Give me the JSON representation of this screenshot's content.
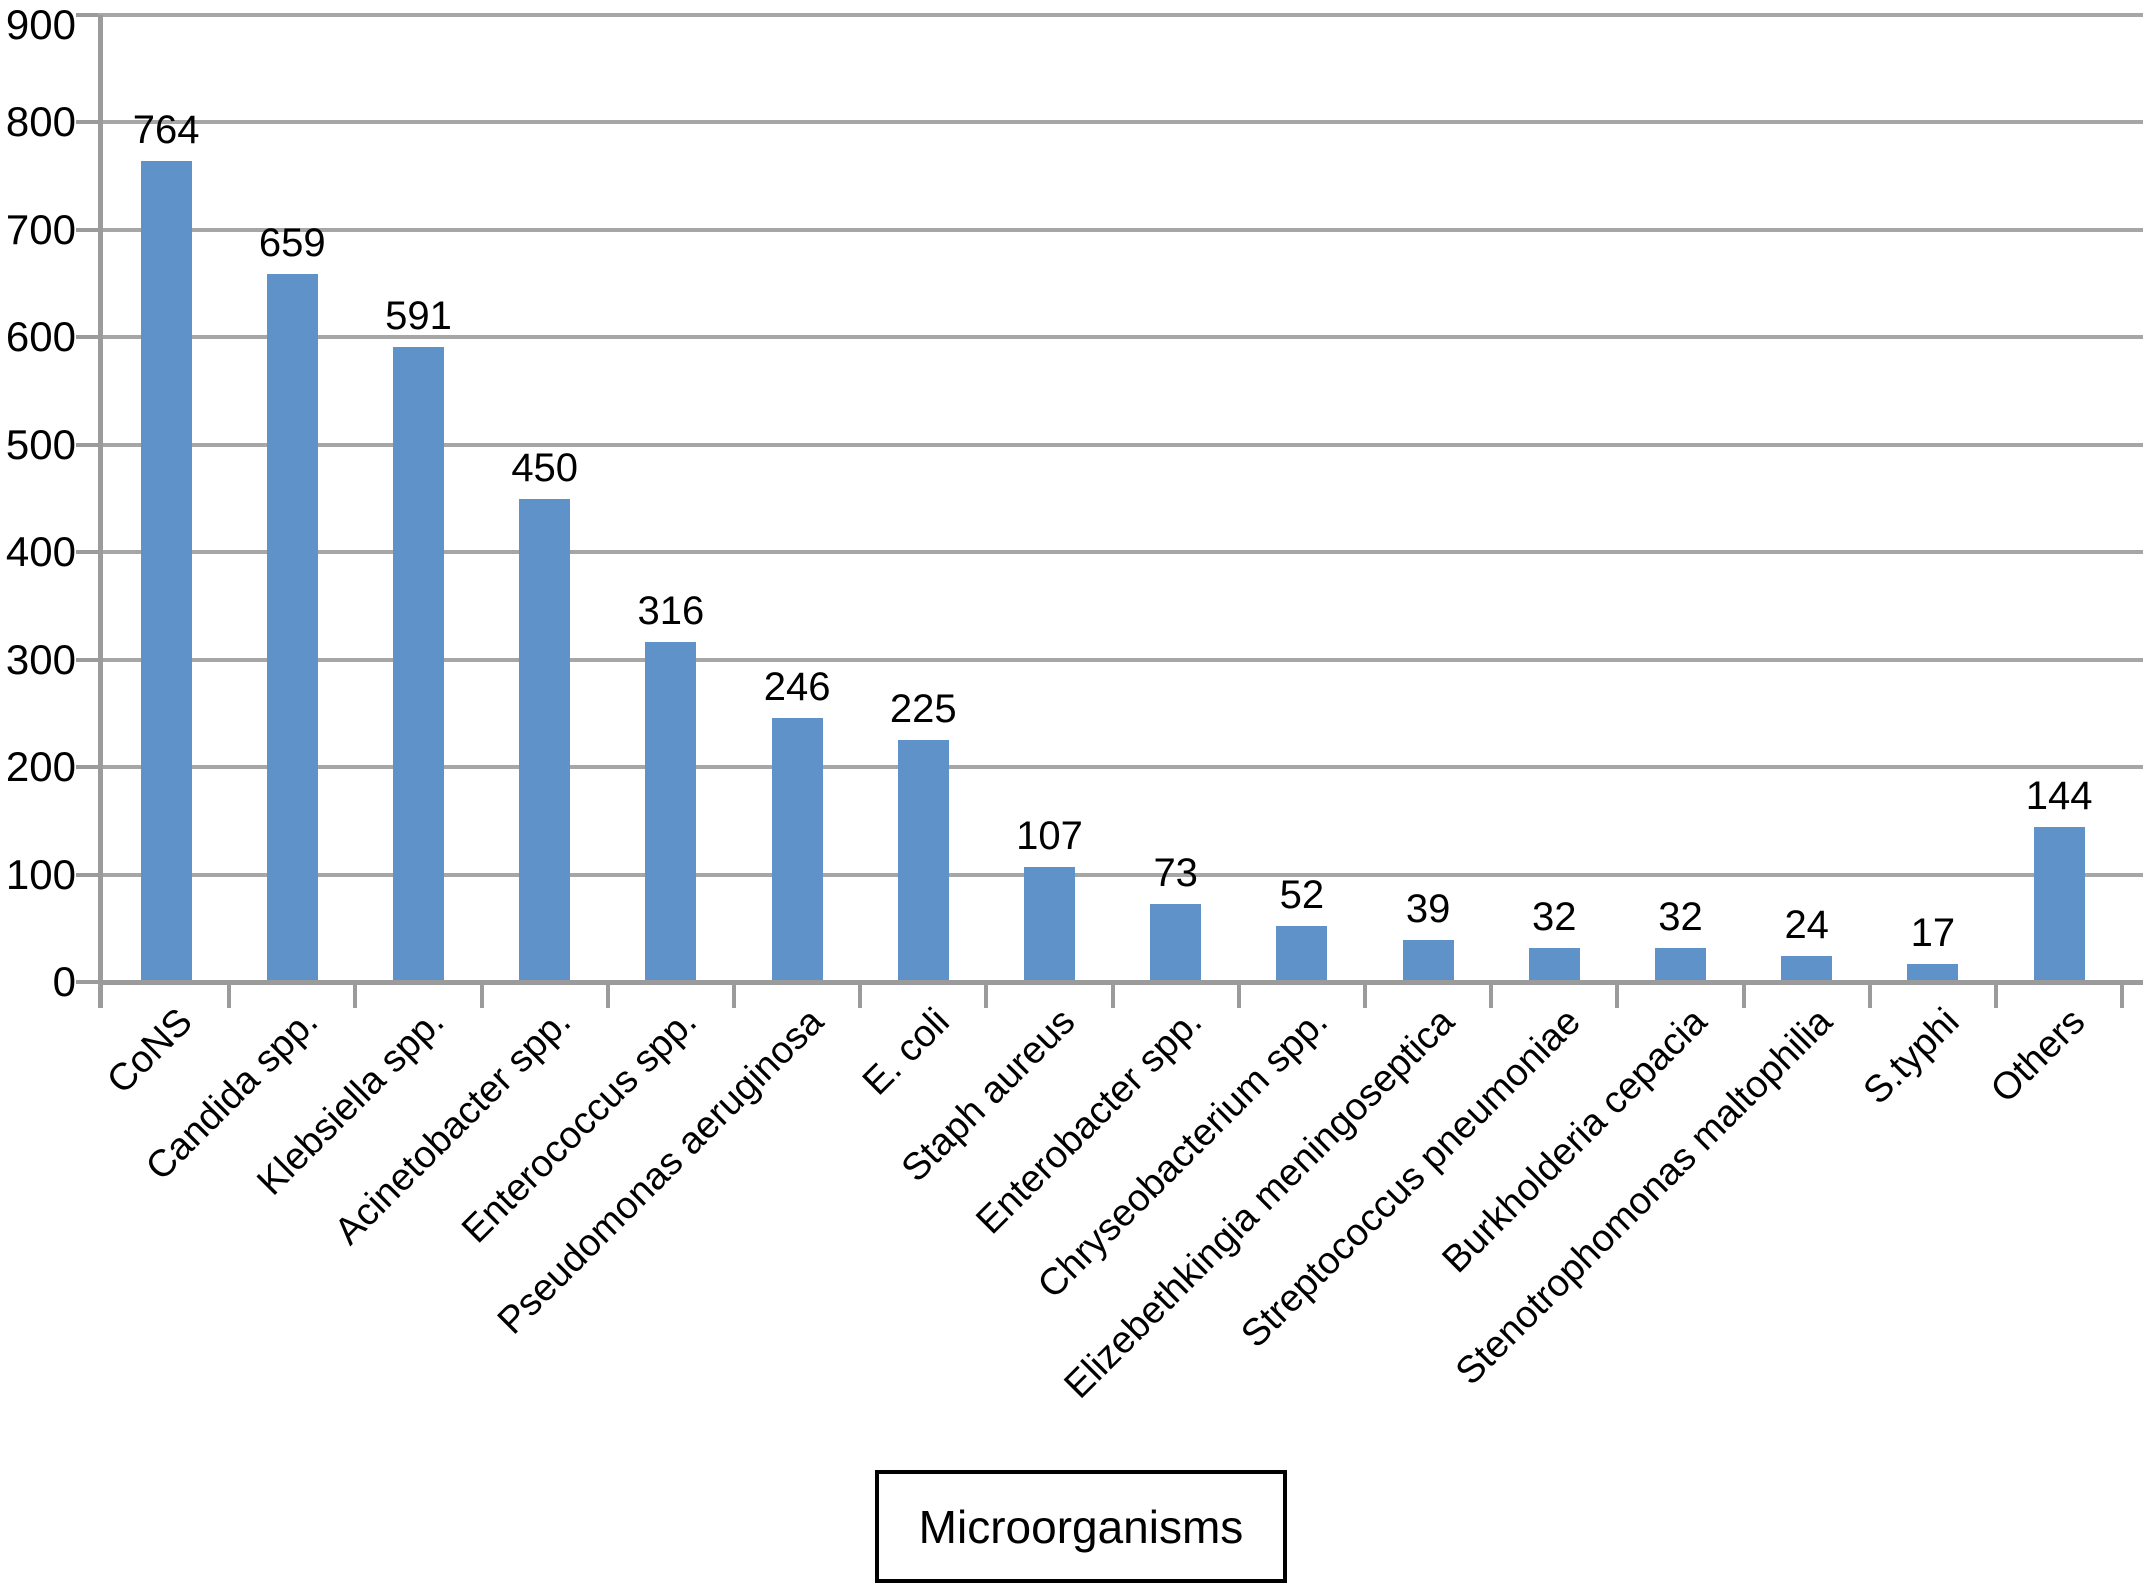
{
  "chart_data": {
    "type": "bar",
    "title": "",
    "categories": [
      "CoNS",
      "Candida spp.",
      "Klebsiella spp.",
      "Acinetobacter spp.",
      "Enterococcus spp.",
      "Pseudomonas aeruginosa",
      "E. coli",
      "Staph aureus",
      "Enterobacter spp.",
      "Chryseobacterium spp.",
      "Elizebethkingia meningoseptica",
      "Streptococcus pneumoniae",
      "Burkholderia cepacia",
      "Stenotrophomonas maltophilia",
      "S.typhi",
      "Others"
    ],
    "values": [
      764,
      659,
      591,
      450,
      316,
      246,
      225,
      107,
      73,
      52,
      39,
      32,
      32,
      24,
      17,
      144
    ],
    "data_labels": [
      "764",
      "659",
      "591",
      "450",
      "316",
      "246",
      "225",
      "107",
      "73",
      "52",
      "39",
      "32",
      "32",
      "24",
      "17",
      "144"
    ],
    "xlabel": "Microorganisms",
    "ylabel": "",
    "ylim": [
      0,
      900
    ],
    "yticks": [
      0,
      100,
      200,
      300,
      400,
      500,
      600,
      700,
      800,
      900
    ],
    "grid": "horizontal-gridlines-on",
    "legend_position": "none",
    "colors": {
      "bar_fill": "#5F92C8",
      "gridline": "#A6A6A6",
      "axis": "#9B9B9B",
      "text": "#000000",
      "background": "#FFFFFF",
      "axis_title_border": "#000000"
    }
  }
}
